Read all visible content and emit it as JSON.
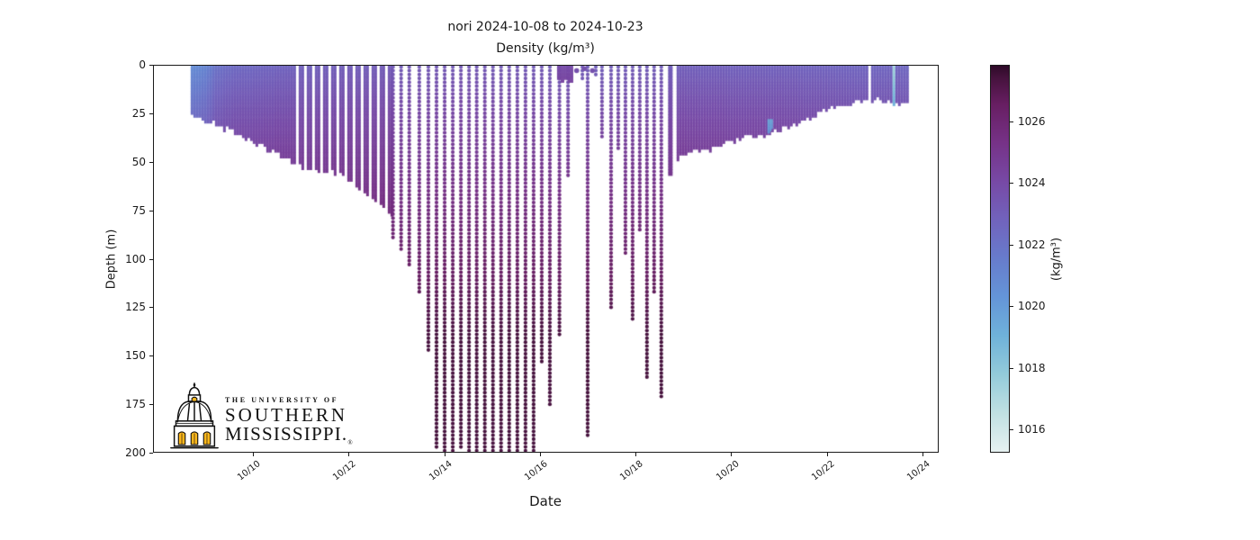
{
  "title": "nori 2024-10-08 to 2024-10-23",
  "subtitle": "Density (kg/m³)",
  "axes": {
    "xlabel": "Date",
    "ylabel": "Depth (m)",
    "x_tick_labels": [
      "10/10",
      "10/12",
      "10/14",
      "10/16",
      "10/18",
      "10/20",
      "10/22",
      "10/24"
    ],
    "y_tick_labels": [
      "0",
      "25",
      "50",
      "75",
      "100",
      "125",
      "150",
      "175",
      "200"
    ],
    "y_tick_values": [
      0,
      25,
      50,
      75,
      100,
      125,
      150,
      175,
      200
    ]
  },
  "colorbar": {
    "label": "(kg/m³)",
    "tick_labels": [
      "1026",
      "1024",
      "1022",
      "1020",
      "1018",
      "1016"
    ],
    "tick_values": [
      1026,
      1024,
      1022,
      1020,
      1018,
      1016
    ],
    "vmin": 1015.24,
    "vmax": 1027.84,
    "colormap": "cmocean-dense",
    "stops": [
      [
        0.0,
        "#e6f1f1"
      ],
      [
        0.1,
        "#c0e0e2"
      ],
      [
        0.2,
        "#93cbda"
      ],
      [
        0.3,
        "#6fb2da"
      ],
      [
        0.4,
        "#6495d8"
      ],
      [
        0.5,
        "#677ccc"
      ],
      [
        0.6,
        "#7163bd"
      ],
      [
        0.7,
        "#7749a5"
      ],
      [
        0.8,
        "#763287"
      ],
      [
        0.9,
        "#671e62"
      ],
      [
        0.97,
        "#45123c"
      ],
      [
        1.0,
        "#2d0a28"
      ]
    ]
  },
  "logo": {
    "line1": "THE UNIVERSITY OF",
    "line2": "SOUTHERN",
    "line3": "MISSISSIPPI.",
    "registered": "®",
    "dome_gold": "#FFB81C"
  },
  "chart_data": {
    "type": "scatter",
    "title": "nori 2024-10-08 to 2024-10-23",
    "subtitle": "Density (kg/m³)",
    "xlabel": "Date",
    "ylabel": "Depth (m)",
    "ylim": [
      200,
      0
    ],
    "x_axis": {
      "origin_date": "2024-10-08",
      "range_days": [
        -0.088,
        16.34
      ],
      "tick_days": [
        2,
        4,
        6,
        8,
        10,
        12,
        14,
        16
      ]
    },
    "density_model": {
      "deep_sigma": 1027.4,
      "depth_scale_m": 140,
      "depth_exp": 0.85,
      "surface_sigma_by_day": [
        [
          0.7,
          1020.7
        ],
        [
          1.0,
          1021.0
        ],
        [
          1.25,
          1022.0
        ],
        [
          1.6,
          1022.4
        ],
        [
          2.2,
          1022.6
        ],
        [
          3.0,
          1022.8
        ],
        [
          4.0,
          1023.0
        ],
        [
          5.0,
          1023.1
        ],
        [
          6.5,
          1023.2
        ],
        [
          8.0,
          1023.1
        ],
        [
          9.0,
          1022.9
        ],
        [
          10.0,
          1023.0
        ],
        [
          11.0,
          1022.9
        ],
        [
          12.0,
          1022.85
        ],
        [
          13.0,
          1022.8
        ],
        [
          14.0,
          1022.7
        ],
        [
          15.0,
          1022.6
        ],
        [
          15.68,
          1022.55
        ]
      ]
    },
    "solid_regions": [
      {
        "name": "early-dense-profiles",
        "t0": 0.7,
        "t1": 4.88,
        "stripe_from": 2.92,
        "envelope": [
          [
            0.7,
            25
          ],
          [
            0.95,
            27
          ],
          [
            1.23,
            30
          ],
          [
            1.51,
            33
          ],
          [
            1.79,
            36
          ],
          [
            2.08,
            40
          ],
          [
            2.36,
            43
          ],
          [
            2.56,
            46
          ],
          [
            2.73,
            48
          ],
          [
            2.92,
            51
          ],
          [
            3.15,
            53
          ],
          [
            3.4,
            55
          ],
          [
            3.6,
            54
          ],
          [
            3.8,
            56
          ],
          [
            4.0,
            58
          ],
          [
            4.15,
            62
          ],
          [
            4.3,
            65
          ],
          [
            4.45,
            67
          ],
          [
            4.6,
            70
          ],
          [
            4.72,
            73
          ],
          [
            4.82,
            76
          ]
        ]
      },
      {
        "name": "late-dense-profiles",
        "t0": 10.86,
        "t1": 15.68,
        "stripe_from": null,
        "envelope": [
          [
            10.86,
            48
          ],
          [
            10.95,
            46
          ],
          [
            11.1,
            44
          ],
          [
            11.3,
            43
          ],
          [
            11.45,
            42
          ],
          [
            11.57,
            44
          ],
          [
            11.65,
            41
          ],
          [
            11.8,
            40
          ],
          [
            12.0,
            38
          ],
          [
            12.2,
            37.5
          ],
          [
            12.55,
            36
          ],
          [
            12.8,
            35
          ],
          [
            13.0,
            33
          ],
          [
            13.3,
            30
          ],
          [
            13.7,
            26
          ],
          [
            14.0,
            22
          ],
          [
            14.25,
            19.5
          ],
          [
            14.7,
            18
          ],
          [
            15.1,
            17.5
          ],
          [
            15.45,
            19
          ],
          [
            15.68,
            18
          ]
        ],
        "gap_days": [
          14.86
        ],
        "light_streak": {
          "t0": 15.36,
          "t1": 15.45,
          "sigma": 1017.2
        }
      }
    ],
    "solid_fingers": [
      {
        "day": 10.73,
        "zmax": 56
      }
    ],
    "profiles": [
      [
        4.93,
        90
      ],
      [
        5.1,
        95
      ],
      [
        5.27,
        103
      ],
      [
        5.48,
        117
      ],
      [
        5.67,
        147
      ],
      [
        5.84,
        197
      ],
      [
        6.01,
        200
      ],
      [
        6.18,
        200
      ],
      [
        6.35,
        197
      ],
      [
        6.52,
        200
      ],
      [
        6.68,
        200
      ],
      [
        6.85,
        200
      ],
      [
        7.02,
        199
      ],
      [
        7.19,
        200
      ],
      [
        7.36,
        200
      ],
      [
        7.53,
        199
      ],
      [
        7.7,
        200
      ],
      [
        7.87,
        200
      ],
      [
        8.04,
        153
      ],
      [
        8.21,
        176
      ],
      [
        8.41,
        140
      ],
      [
        8.59,
        58
      ],
      [
        8.89,
        8
      ],
      [
        9.0,
        191
      ],
      [
        9.17,
        6
      ],
      [
        9.3,
        37
      ],
      [
        9.49,
        126
      ],
      [
        9.64,
        44
      ],
      [
        9.79,
        98
      ],
      [
        9.94,
        132
      ],
      [
        10.09,
        85
      ],
      [
        10.24,
        162
      ],
      [
        10.39,
        118
      ],
      [
        10.54,
        172
      ]
    ],
    "surface_blob": {
      "t0": 8.36,
      "t1": 8.68,
      "zmax": 6,
      "sigma": 1023.9
    },
    "surface_dots": [
      [
        8.77,
        3
      ],
      [
        8.93,
        2
      ],
      [
        9.1,
        3
      ]
    ],
    "light_spot": {
      "day0": 12.76,
      "day1": 12.86,
      "z0": 28,
      "z1": 35,
      "sigma": 1019.3
    }
  }
}
